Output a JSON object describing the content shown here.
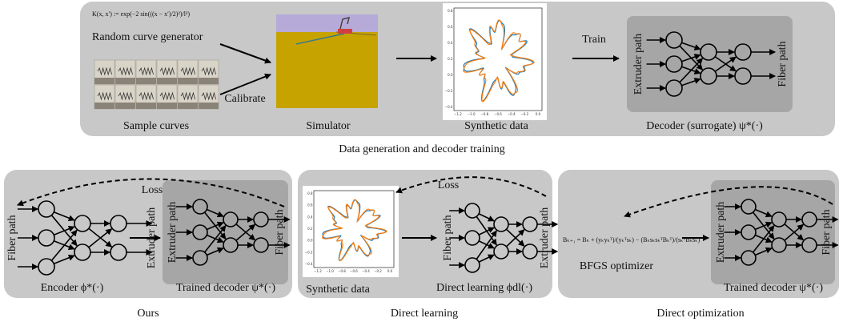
{
  "top": {
    "formula": "K(x, x′) := exp(−2 sin(((x − x′)/2)²)/l²)",
    "generator": "Random curve generator",
    "sample_curves": "Sample curves",
    "calibrate": "Calibrate",
    "simulator": "Simulator",
    "synthetic_data": "Synthetic data",
    "plot_yticks": [
      "0.8",
      "0.6",
      "0.4",
      "0.2",
      "0.0",
      "−0.2",
      "−0.4"
    ],
    "plot_xticks": [
      "−1.2",
      "−1.0",
      "−0.8",
      "−0.6",
      "−0.4",
      "−0.2",
      "0.0"
    ],
    "train": "Train",
    "decoder_input": "Extruder path",
    "decoder_output": "Fiber path",
    "decoder": "Decoder (surrogate) ψ*(·)",
    "caption": "Data generation and decoder training"
  },
  "ours": {
    "loss": "Loss",
    "encoder_input": "Fiber path",
    "encoder_output": "Extruder path",
    "decoder_input": "Extruder path",
    "decoder_output": "Fiber path",
    "encoder": "Encoder ϕ*(·)",
    "decoder": "Trained decoder ψ*(·)",
    "caption": "Ours"
  },
  "direct_learning": {
    "loss": "Loss",
    "synthetic_data": "Synthetic data",
    "plot_yticks": [
      "0.8",
      "0.6",
      "0.4",
      "0.2",
      "0.0",
      "−0.2",
      "−0.4"
    ],
    "plot_xticks": [
      "−1.2",
      "−1.0",
      "−0.8",
      "−0.6",
      "−0.4",
      "−0.2",
      "0.0"
    ],
    "net_input": "Fiber path",
    "net_output": "Extruder path",
    "model": "Direct learning ϕdl(·)",
    "caption": "Direct learning"
  },
  "direct_optimization": {
    "formula": "Bₖ₊₁ = Bₖ + (yₖyₖᵀ)/(yₖᵀsₖ) − (BₖsₖsₖᵀBₖᵀ)/(sₖᵀBₖsₖ)",
    "optimizer": "BFGS optimizer",
    "decoder_input": "Extruder path",
    "decoder_output": "Fiber path",
    "decoder": "Trained decoder ψ*(·)",
    "caption": "Direct optimization"
  }
}
